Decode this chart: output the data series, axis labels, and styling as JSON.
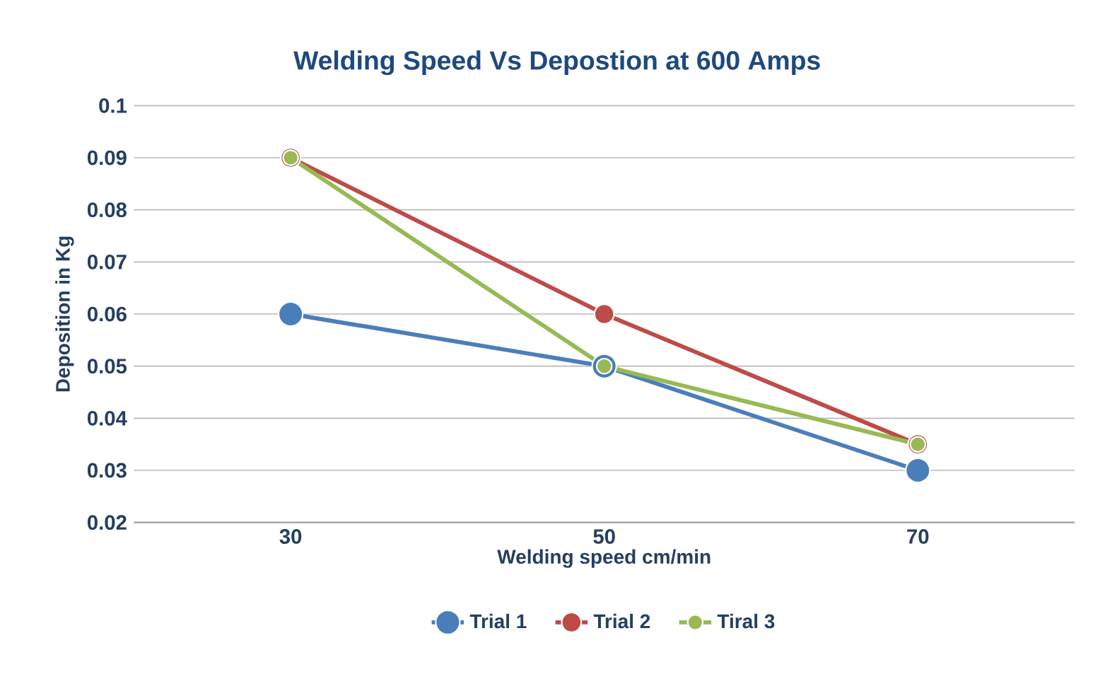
{
  "chart_data": {
    "type": "line",
    "title": "Welding Speed Vs Depostion at 600 Amps",
    "xlabel": "Welding speed cm/min",
    "ylabel": "Deposition in Kg",
    "categories": [
      "30",
      "50",
      "70"
    ],
    "series": [
      {
        "name": "Trial 1",
        "color": "#4a7ebb",
        "values": [
          0.06,
          0.05,
          0.03
        ]
      },
      {
        "name": "Trial 2",
        "color": "#be4b48",
        "values": [
          0.09,
          0.06,
          0.035
        ]
      },
      {
        "name": "Tiral 3",
        "color": "#98b954",
        "values": [
          0.09,
          0.05,
          0.035
        ]
      }
    ],
    "ylim": [
      0.02,
      0.1
    ],
    "yticks": [
      0.02,
      0.03,
      0.04,
      0.05,
      0.06,
      0.07,
      0.08,
      0.09,
      0.1
    ],
    "grid": "y",
    "legend": "bottom",
    "marker": "circle"
  }
}
